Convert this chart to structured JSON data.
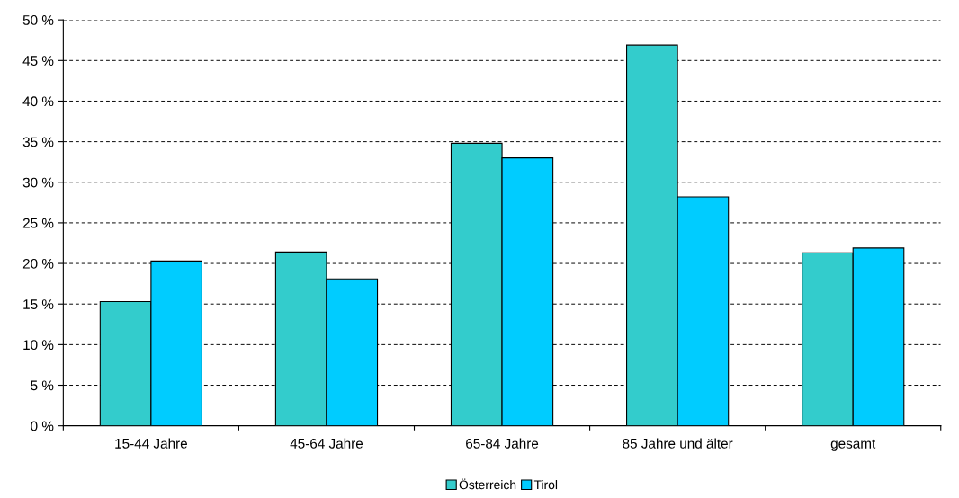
{
  "chart_data": {
    "type": "bar",
    "categories": [
      "15-44 Jahre",
      "45-64 Jahre",
      "65-84 Jahre",
      "85 Jahre und älter",
      "gesamt"
    ],
    "series": [
      {
        "name": "Österreich",
        "color": "#33cccc",
        "values": [
          15.3,
          21.4,
          34.8,
          46.9,
          21.3
        ]
      },
      {
        "name": "Tirol",
        "color": "#00ccff",
        "values": [
          20.3,
          18.1,
          33.0,
          28.2,
          21.9
        ]
      }
    ],
    "ylim": [
      0,
      50
    ],
    "yticks": [
      {
        "value": 0,
        "label": "0 %"
      },
      {
        "value": 5,
        "label": "5 %"
      },
      {
        "value": 10,
        "label": "10 %"
      },
      {
        "value": 15,
        "label": "15 %"
      },
      {
        "value": 20,
        "label": "20 %"
      },
      {
        "value": 25,
        "label": "25 %"
      },
      {
        "value": 30,
        "label": "30 %"
      },
      {
        "value": 35,
        "label": "35 %"
      },
      {
        "value": 40,
        "label": "40 %"
      },
      {
        "value": 45,
        "label": "45 %"
      },
      {
        "value": 50,
        "label": "50 %"
      }
    ],
    "grid": "y",
    "legend": "bottom"
  }
}
